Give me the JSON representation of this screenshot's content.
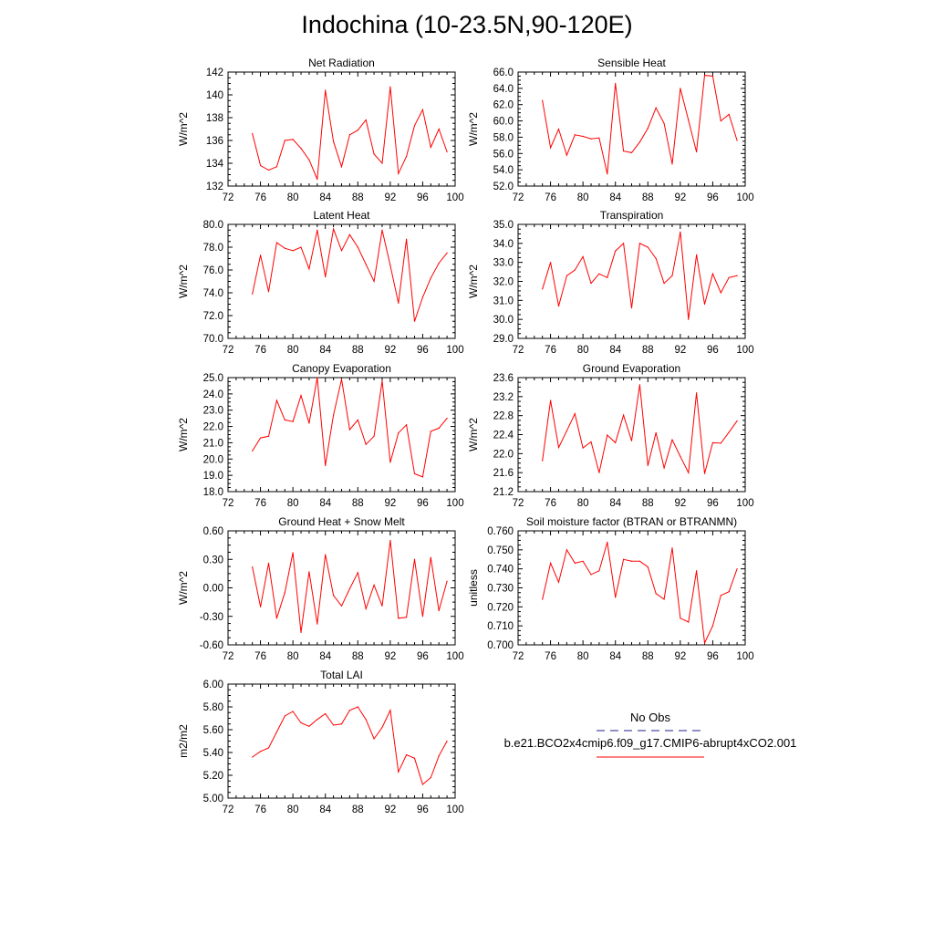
{
  "title": "Indochina (10-23.5N,90-120E)",
  "colors": {
    "model": "#ff0000",
    "obs": "#1f1f8f",
    "axis": "#000000"
  },
  "legend": {
    "obs_label": "No Obs",
    "model_label": "b.e21.BCO2x4cmip6.f09_g17.CMIP6-abrupt4xCO2.001"
  },
  "chart_data": [
    {
      "type": "line",
      "title": "Net Radiation",
      "ylabel": "W/m^2",
      "xlim": [
        72,
        100
      ],
      "ylim": [
        132,
        142
      ],
      "xticks": [
        72,
        76,
        80,
        84,
        88,
        92,
        96,
        100
      ],
      "yticks": [
        "132",
        "134",
        "136",
        "138",
        "140",
        "142"
      ],
      "x": [
        75,
        76,
        77,
        78,
        79,
        80,
        81,
        82,
        83,
        84,
        85,
        86,
        87,
        88,
        89,
        90,
        91,
        92,
        93,
        94,
        95,
        96,
        97,
        98,
        99
      ],
      "series": [
        {
          "name": "b.e21.BCO2x4cmip6.f09_g17.CMIP6-abrupt4xCO2.001",
          "values": [
            136.6,
            133.8,
            133.4,
            133.7,
            136.0,
            136.1,
            135.3,
            134.3,
            132.6,
            140.4,
            135.9,
            133.7,
            136.5,
            136.9,
            137.8,
            134.8,
            134.0,
            140.7,
            133.1,
            134.6,
            137.3,
            138.7,
            135.4,
            137.0,
            135.0
          ]
        }
      ]
    },
    {
      "type": "line",
      "title": "Sensible Heat",
      "ylabel": "W/m^2",
      "xlim": [
        72,
        100
      ],
      "ylim": [
        52,
        66
      ],
      "xticks": [
        72,
        76,
        80,
        84,
        88,
        92,
        96,
        100
      ],
      "yticks": [
        "52.0",
        "54.0",
        "56.0",
        "58.0",
        "60.0",
        "62.0",
        "64.0",
        "66.0"
      ],
      "x": [
        75,
        76,
        77,
        78,
        79,
        80,
        81,
        82,
        83,
        84,
        85,
        86,
        87,
        88,
        89,
        90,
        91,
        92,
        93,
        94,
        95,
        96,
        97,
        98,
        99
      ],
      "series": [
        {
          "name": "b.e21.BCO2x4cmip6.f09_g17.CMIP6-abrupt4xCO2.001",
          "values": [
            62.5,
            56.7,
            59.0,
            55.8,
            58.3,
            58.1,
            57.8,
            57.9,
            53.5,
            64.6,
            56.3,
            56.1,
            57.4,
            59.1,
            61.6,
            59.7,
            54.7,
            64.0,
            60.1,
            56.2,
            65.6,
            65.5,
            60.0,
            60.8,
            57.6
          ]
        }
      ]
    },
    {
      "type": "line",
      "title": "Latent Heat",
      "ylabel": "W/m^2",
      "xlim": [
        72,
        100
      ],
      "ylim": [
        70,
        80
      ],
      "xticks": [
        72,
        76,
        80,
        84,
        88,
        92,
        96,
        100
      ],
      "yticks": [
        "70.0",
        "72.0",
        "74.0",
        "76.0",
        "78.0",
        "80.0"
      ],
      "x": [
        75,
        76,
        77,
        78,
        79,
        80,
        81,
        82,
        83,
        84,
        85,
        86,
        87,
        88,
        89,
        90,
        91,
        92,
        93,
        94,
        95,
        96,
        97,
        98,
        99
      ],
      "series": [
        {
          "name": "b.e21.BCO2x4cmip6.f09_g17.CMIP6-abrupt4xCO2.001",
          "values": [
            73.9,
            77.3,
            74.1,
            78.4,
            77.9,
            77.7,
            78.0,
            76.1,
            79.5,
            75.4,
            79.6,
            77.7,
            79.1,
            78.0,
            76.5,
            75.0,
            79.5,
            76.4,
            73.1,
            78.7,
            71.5,
            73.6,
            75.3,
            76.6,
            77.5
          ]
        }
      ]
    },
    {
      "type": "line",
      "title": "Transpiration",
      "ylabel": "W/m^2",
      "xlim": [
        72,
        100
      ],
      "ylim": [
        29,
        35
      ],
      "xticks": [
        72,
        76,
        80,
        84,
        88,
        92,
        96,
        100
      ],
      "yticks": [
        "29.0",
        "30.0",
        "31.0",
        "32.0",
        "33.0",
        "34.0",
        "35.0"
      ],
      "x": [
        75,
        76,
        77,
        78,
        79,
        80,
        81,
        82,
        83,
        84,
        85,
        86,
        87,
        88,
        89,
        90,
        91,
        92,
        93,
        94,
        95,
        96,
        97,
        98,
        99
      ],
      "series": [
        {
          "name": "b.e21.BCO2x4cmip6.f09_g17.CMIP6-abrupt4xCO2.001",
          "values": [
            31.6,
            33.0,
            30.7,
            32.3,
            32.6,
            33.3,
            31.9,
            32.4,
            32.2,
            33.6,
            34.0,
            30.6,
            34.0,
            33.8,
            33.2,
            31.9,
            32.3,
            34.6,
            30.0,
            33.4,
            30.8,
            32.4,
            31.4,
            32.2,
            32.3
          ]
        }
      ]
    },
    {
      "type": "line",
      "title": "Canopy Evaporation",
      "ylabel": "W/m^2",
      "xlim": [
        72,
        100
      ],
      "ylim": [
        18,
        25
      ],
      "xticks": [
        72,
        76,
        80,
        84,
        88,
        92,
        96,
        100
      ],
      "yticks": [
        "18.0",
        "19.0",
        "20.0",
        "21.0",
        "22.0",
        "23.0",
        "24.0",
        "25.0"
      ],
      "x": [
        75,
        76,
        77,
        78,
        79,
        80,
        81,
        82,
        83,
        84,
        85,
        86,
        87,
        88,
        89,
        90,
        91,
        92,
        93,
        94,
        95,
        96,
        97,
        98,
        99
      ],
      "series": [
        {
          "name": "b.e21.BCO2x4cmip6.f09_g17.CMIP6-abrupt4xCO2.001",
          "values": [
            20.5,
            21.3,
            21.4,
            23.6,
            22.4,
            22.3,
            23.9,
            22.2,
            25.0,
            19.6,
            22.7,
            24.9,
            21.8,
            22.4,
            20.9,
            21.4,
            24.8,
            19.8,
            21.6,
            22.1,
            19.1,
            18.9,
            21.7,
            21.9,
            22.5
          ]
        }
      ]
    },
    {
      "type": "line",
      "title": "Ground Evaporation",
      "ylabel": "W/m^2",
      "xlim": [
        72,
        100
      ],
      "ylim": [
        21.2,
        23.6
      ],
      "xticks": [
        72,
        76,
        80,
        84,
        88,
        92,
        96,
        100
      ],
      "yticks": [
        "21.2",
        "21.6",
        "22.0",
        "22.4",
        "22.8",
        "23.2",
        "23.6"
      ],
      "x": [
        75,
        76,
        77,
        78,
        79,
        80,
        81,
        82,
        83,
        84,
        85,
        86,
        87,
        88,
        89,
        90,
        91,
        92,
        93,
        94,
        95,
        96,
        97,
        98,
        99
      ],
      "series": [
        {
          "name": "b.e21.BCO2x4cmip6.f09_g17.CMIP6-abrupt4xCO2.001",
          "values": [
            21.85,
            23.12,
            22.13,
            22.48,
            22.84,
            22.12,
            22.25,
            21.6,
            22.39,
            22.23,
            22.81,
            22.27,
            23.45,
            21.75,
            22.44,
            21.7,
            22.29,
            21.94,
            21.6,
            23.28,
            21.58,
            22.23,
            22.22,
            22.45,
            22.69
          ]
        }
      ]
    },
    {
      "type": "line",
      "title": "Ground Heat + Snow Melt",
      "ylabel": "W/m^2",
      "xlim": [
        72,
        100
      ],
      "ylim": [
        -0.6,
        0.6
      ],
      "xticks": [
        72,
        76,
        80,
        84,
        88,
        92,
        96,
        100
      ],
      "yticks": [
        "-0.60",
        "-0.30",
        "0.00",
        "0.30",
        "0.60"
      ],
      "x": [
        75,
        76,
        77,
        78,
        79,
        80,
        81,
        82,
        83,
        84,
        85,
        86,
        87,
        88,
        89,
        90,
        91,
        92,
        93,
        94,
        95,
        96,
        97,
        98,
        99
      ],
      "series": [
        {
          "name": "b.e21.BCO2x4cmip6.f09_g17.CMIP6-abrupt4xCO2.001",
          "values": [
            0.22,
            -0.2,
            0.26,
            -0.32,
            -0.05,
            0.37,
            -0.47,
            0.17,
            -0.38,
            0.35,
            -0.08,
            -0.19,
            -0.01,
            0.16,
            -0.22,
            0.03,
            -0.19,
            0.5,
            -0.32,
            -0.31,
            0.3,
            -0.3,
            0.32,
            -0.24,
            0.07
          ]
        }
      ]
    },
    {
      "type": "line",
      "title": "Soil moisture factor (BTRAN or BTRANMN)",
      "ylabel": "unitless",
      "xlim": [
        72,
        100
      ],
      "ylim": [
        0.7,
        0.76
      ],
      "xticks": [
        72,
        76,
        80,
        84,
        88,
        92,
        96,
        100
      ],
      "yticks": [
        "0.700",
        "0.710",
        "0.720",
        "0.730",
        "0.740",
        "0.750",
        "0.760"
      ],
      "x": [
        75,
        76,
        77,
        78,
        79,
        80,
        81,
        82,
        83,
        84,
        85,
        86,
        87,
        88,
        89,
        90,
        91,
        92,
        93,
        94,
        95,
        96,
        97,
        98,
        99
      ],
      "series": [
        {
          "name": "b.e21.BCO2x4cmip6.f09_g17.CMIP6-abrupt4xCO2.001",
          "values": [
            0.724,
            0.743,
            0.733,
            0.75,
            0.743,
            0.744,
            0.737,
            0.739,
            0.754,
            0.725,
            0.745,
            0.744,
            0.744,
            0.741,
            0.727,
            0.724,
            0.751,
            0.714,
            0.712,
            0.739,
            0.701,
            0.71,
            0.726,
            0.728,
            0.74
          ]
        }
      ]
    },
    {
      "type": "line",
      "title": "Total LAI",
      "ylabel": "m2/m2",
      "xlim": [
        72,
        100
      ],
      "ylim": [
        5.0,
        6.0
      ],
      "xticks": [
        72,
        76,
        80,
        84,
        88,
        92,
        96,
        100
      ],
      "yticks": [
        "5.00",
        "5.20",
        "5.40",
        "5.60",
        "5.80",
        "6.00"
      ],
      "x": [
        75,
        76,
        77,
        78,
        79,
        80,
        81,
        82,
        83,
        84,
        85,
        86,
        87,
        88,
        89,
        90,
        91,
        92,
        93,
        94,
        95,
        96,
        97,
        98,
        99
      ],
      "series": [
        {
          "name": "b.e21.BCO2x4cmip6.f09_g17.CMIP6-abrupt4xCO2.001",
          "values": [
            5.36,
            5.41,
            5.44,
            5.58,
            5.72,
            5.76,
            5.66,
            5.63,
            5.69,
            5.74,
            5.64,
            5.65,
            5.77,
            5.8,
            5.69,
            5.52,
            5.62,
            5.77,
            5.23,
            5.38,
            5.35,
            5.12,
            5.18,
            5.37,
            5.5
          ]
        }
      ]
    }
  ]
}
